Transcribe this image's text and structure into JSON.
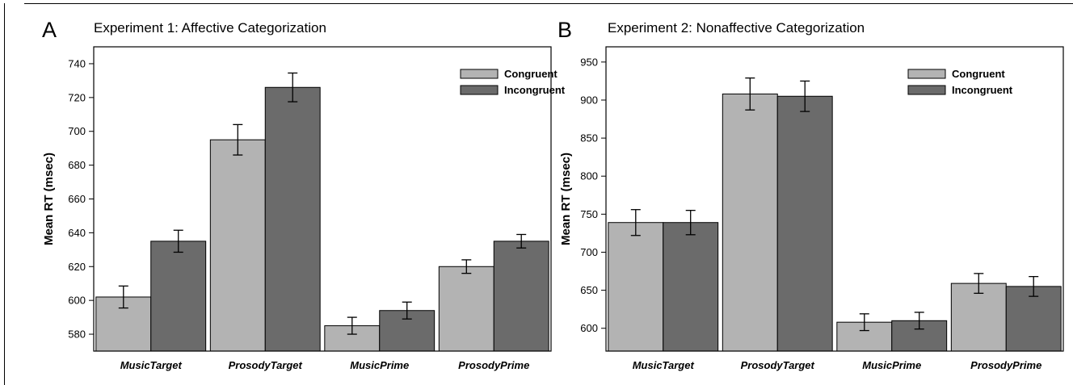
{
  "chart_data": [
    {
      "type": "bar",
      "panel_letter": "A",
      "title": "Experiment 1: Affective Categorization",
      "xlabel": "",
      "ylabel": "Mean RT (msec)",
      "ylim": [
        570,
        750
      ],
      "yticks": [
        580,
        600,
        620,
        640,
        660,
        680,
        700,
        720,
        740
      ],
      "categories": [
        "MusicTarget",
        "ProsodyTarget",
        "MusicPrime",
        "ProsodyPrime"
      ],
      "series": [
        {
          "name": "Congruent",
          "color": "#b3b3b3",
          "values": [
            602,
            695,
            585,
            620
          ],
          "errors": [
            6.5,
            9,
            5,
            4
          ]
        },
        {
          "name": "Incongruent",
          "color": "#6b6b6b",
          "values": [
            635,
            726,
            594,
            635
          ],
          "errors": [
            6.5,
            8.5,
            5,
            4
          ]
        }
      ],
      "legend": "top-right",
      "grid": false
    },
    {
      "type": "bar",
      "panel_letter": "B",
      "title": "Experiment 2: Nonaffective Categorization",
      "xlabel": "",
      "ylabel": "Mean RT (msec)",
      "ylim": [
        570,
        970
      ],
      "yticks": [
        600,
        650,
        700,
        750,
        800,
        850,
        900,
        950
      ],
      "categories": [
        "MusicTarget",
        "ProsodyTarget",
        "MusicPrime",
        "ProsodyPrime"
      ],
      "series": [
        {
          "name": "Congruent",
          "color": "#b3b3b3",
          "values": [
            739,
            908,
            608,
            659
          ],
          "errors": [
            17,
            21,
            11,
            13
          ]
        },
        {
          "name": "Incongruent",
          "color": "#6b6b6b",
          "values": [
            739,
            905,
            610,
            655
          ],
          "errors": [
            16,
            20,
            11,
            13
          ]
        }
      ],
      "legend": "top-right",
      "grid": false
    }
  ]
}
